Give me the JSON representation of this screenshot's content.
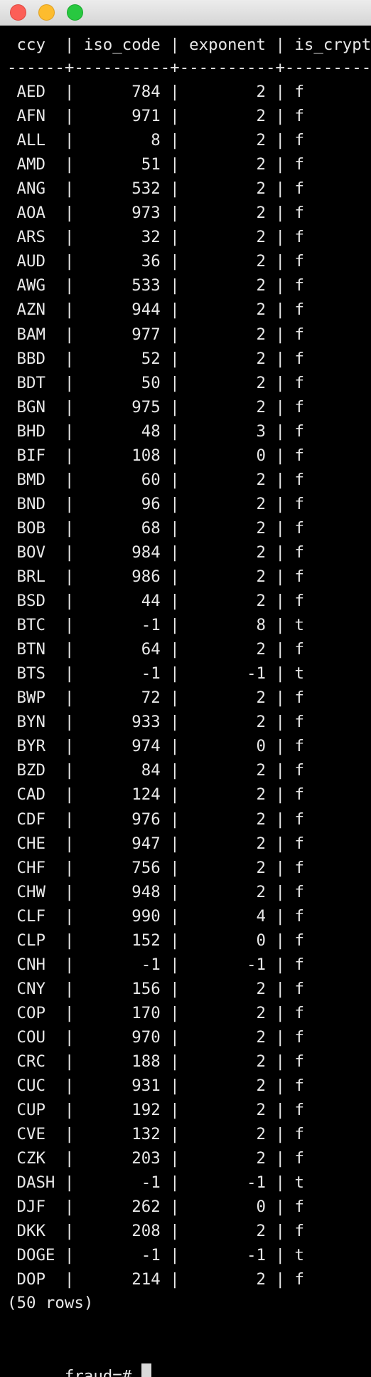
{
  "window": {
    "buttons": [
      "close",
      "minimize",
      "zoom"
    ]
  },
  "query_result": {
    "header": " ccy  | iso_code | exponent | is_crypto",
    "separator": "------+----------+----------+-----------",
    "rows": [
      {
        "ccy": "AED",
        "iso_code": "784",
        "exponent": "2",
        "is_crypto": "f"
      },
      {
        "ccy": "AFN",
        "iso_code": "971",
        "exponent": "2",
        "is_crypto": "f"
      },
      {
        "ccy": "ALL",
        "iso_code": "8",
        "exponent": "2",
        "is_crypto": "f"
      },
      {
        "ccy": "AMD",
        "iso_code": "51",
        "exponent": "2",
        "is_crypto": "f"
      },
      {
        "ccy": "ANG",
        "iso_code": "532",
        "exponent": "2",
        "is_crypto": "f"
      },
      {
        "ccy": "AOA",
        "iso_code": "973",
        "exponent": "2",
        "is_crypto": "f"
      },
      {
        "ccy": "ARS",
        "iso_code": "32",
        "exponent": "2",
        "is_crypto": "f"
      },
      {
        "ccy": "AUD",
        "iso_code": "36",
        "exponent": "2",
        "is_crypto": "f"
      },
      {
        "ccy": "AWG",
        "iso_code": "533",
        "exponent": "2",
        "is_crypto": "f"
      },
      {
        "ccy": "AZN",
        "iso_code": "944",
        "exponent": "2",
        "is_crypto": "f"
      },
      {
        "ccy": "BAM",
        "iso_code": "977",
        "exponent": "2",
        "is_crypto": "f"
      },
      {
        "ccy": "BBD",
        "iso_code": "52",
        "exponent": "2",
        "is_crypto": "f"
      },
      {
        "ccy": "BDT",
        "iso_code": "50",
        "exponent": "2",
        "is_crypto": "f"
      },
      {
        "ccy": "BGN",
        "iso_code": "975",
        "exponent": "2",
        "is_crypto": "f"
      },
      {
        "ccy": "BHD",
        "iso_code": "48",
        "exponent": "3",
        "is_crypto": "f"
      },
      {
        "ccy": "BIF",
        "iso_code": "108",
        "exponent": "0",
        "is_crypto": "f"
      },
      {
        "ccy": "BMD",
        "iso_code": "60",
        "exponent": "2",
        "is_crypto": "f"
      },
      {
        "ccy": "BND",
        "iso_code": "96",
        "exponent": "2",
        "is_crypto": "f"
      },
      {
        "ccy": "BOB",
        "iso_code": "68",
        "exponent": "2",
        "is_crypto": "f"
      },
      {
        "ccy": "BOV",
        "iso_code": "984",
        "exponent": "2",
        "is_crypto": "f"
      },
      {
        "ccy": "BRL",
        "iso_code": "986",
        "exponent": "2",
        "is_crypto": "f"
      },
      {
        "ccy": "BSD",
        "iso_code": "44",
        "exponent": "2",
        "is_crypto": "f"
      },
      {
        "ccy": "BTC",
        "iso_code": "-1",
        "exponent": "8",
        "is_crypto": "t"
      },
      {
        "ccy": "BTN",
        "iso_code": "64",
        "exponent": "2",
        "is_crypto": "f"
      },
      {
        "ccy": "BTS",
        "iso_code": "-1",
        "exponent": "-1",
        "is_crypto": "t"
      },
      {
        "ccy": "BWP",
        "iso_code": "72",
        "exponent": "2",
        "is_crypto": "f"
      },
      {
        "ccy": "BYN",
        "iso_code": "933",
        "exponent": "2",
        "is_crypto": "f"
      },
      {
        "ccy": "BYR",
        "iso_code": "974",
        "exponent": "0",
        "is_crypto": "f"
      },
      {
        "ccy": "BZD",
        "iso_code": "84",
        "exponent": "2",
        "is_crypto": "f"
      },
      {
        "ccy": "CAD",
        "iso_code": "124",
        "exponent": "2",
        "is_crypto": "f"
      },
      {
        "ccy": "CDF",
        "iso_code": "976",
        "exponent": "2",
        "is_crypto": "f"
      },
      {
        "ccy": "CHE",
        "iso_code": "947",
        "exponent": "2",
        "is_crypto": "f"
      },
      {
        "ccy": "CHF",
        "iso_code": "756",
        "exponent": "2",
        "is_crypto": "f"
      },
      {
        "ccy": "CHW",
        "iso_code": "948",
        "exponent": "2",
        "is_crypto": "f"
      },
      {
        "ccy": "CLF",
        "iso_code": "990",
        "exponent": "4",
        "is_crypto": "f"
      },
      {
        "ccy": "CLP",
        "iso_code": "152",
        "exponent": "0",
        "is_crypto": "f"
      },
      {
        "ccy": "CNH",
        "iso_code": "-1",
        "exponent": "-1",
        "is_crypto": "f"
      },
      {
        "ccy": "CNY",
        "iso_code": "156",
        "exponent": "2",
        "is_crypto": "f"
      },
      {
        "ccy": "COP",
        "iso_code": "170",
        "exponent": "2",
        "is_crypto": "f"
      },
      {
        "ccy": "COU",
        "iso_code": "970",
        "exponent": "2",
        "is_crypto": "f"
      },
      {
        "ccy": "CRC",
        "iso_code": "188",
        "exponent": "2",
        "is_crypto": "f"
      },
      {
        "ccy": "CUC",
        "iso_code": "931",
        "exponent": "2",
        "is_crypto": "f"
      },
      {
        "ccy": "CUP",
        "iso_code": "192",
        "exponent": "2",
        "is_crypto": "f"
      },
      {
        "ccy": "CVE",
        "iso_code": "132",
        "exponent": "2",
        "is_crypto": "f"
      },
      {
        "ccy": "CZK",
        "iso_code": "203",
        "exponent": "2",
        "is_crypto": "f"
      },
      {
        "ccy": "DASH",
        "iso_code": "-1",
        "exponent": "-1",
        "is_crypto": "t"
      },
      {
        "ccy": "DJF",
        "iso_code": "262",
        "exponent": "0",
        "is_crypto": "f"
      },
      {
        "ccy": "DKK",
        "iso_code": "208",
        "exponent": "2",
        "is_crypto": "f"
      },
      {
        "ccy": "DOGE",
        "iso_code": "-1",
        "exponent": "-1",
        "is_crypto": "t"
      },
      {
        "ccy": "DOP",
        "iso_code": "214",
        "exponent": "2",
        "is_crypto": "f"
      }
    ],
    "footer": "(50 rows)"
  },
  "prompt": {
    "text": "fraud=# "
  }
}
